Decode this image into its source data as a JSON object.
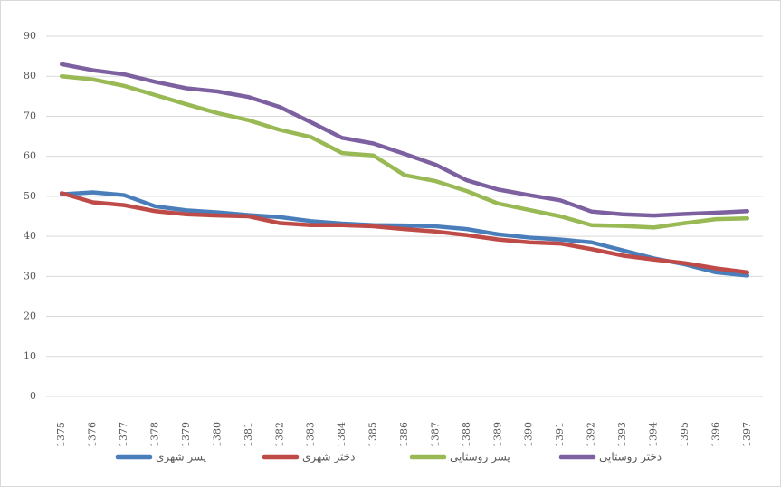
{
  "chart_data": {
    "type": "line",
    "categories": [
      "1375",
      "1376",
      "1377",
      "1378",
      "1379",
      "1380",
      "1381",
      "1382",
      "1383",
      "1384",
      "1385",
      "1386",
      "1387",
      "1388",
      "1389",
      "1390",
      "1391",
      "1392",
      "1393",
      "1394",
      "1395",
      "1396",
      "1397"
    ],
    "series": [
      {
        "name": "پسر شهری",
        "color": "#4a7ebb",
        "values": [
          50.5,
          51,
          50.3,
          47.5,
          46.5,
          46,
          45.3,
          44.8,
          43.8,
          43.2,
          42.8,
          42.7,
          42.5,
          41.8,
          40.5,
          39.7,
          39.2,
          38.5,
          36.5,
          34.5,
          33,
          31,
          30.2
        ]
      },
      {
        "name": "دختر شهری",
        "color": "#be4b48",
        "values": [
          50.8,
          48.5,
          47.8,
          46.3,
          45.5,
          45.2,
          45,
          43.3,
          42.8,
          42.8,
          42.5,
          41.8,
          41.2,
          40.3,
          39.2,
          38.5,
          38.2,
          36.8,
          35.2,
          34.2,
          33.3,
          32,
          31
        ]
      },
      {
        "name": "پسر روستایی",
        "color": "#98b954",
        "values": [
          80,
          79.2,
          77.6,
          75.3,
          73,
          70.8,
          69,
          66.6,
          64.8,
          60.8,
          60.2,
          55.3,
          53.8,
          51.3,
          48.2,
          46.6,
          45,
          42.8,
          42.6,
          42.2,
          43.3,
          44.3,
          44.5
        ]
      },
      {
        "name": "دختر روستایی",
        "color": "#7d60a0",
        "values": [
          83,
          81.5,
          80.5,
          78.6,
          77,
          76.2,
          74.8,
          72.3,
          68.5,
          64.6,
          63.2,
          60.6,
          57.9,
          54,
          51.7,
          50.3,
          49,
          46.2,
          45.5,
          45.2,
          45.6,
          45.9,
          46.3
        ]
      }
    ],
    "ylim": [
      0,
      90
    ],
    "yticks": [
      0,
      10,
      20,
      30,
      40,
      50,
      60,
      70,
      80,
      90
    ],
    "grid": true,
    "legend": "bottom"
  }
}
